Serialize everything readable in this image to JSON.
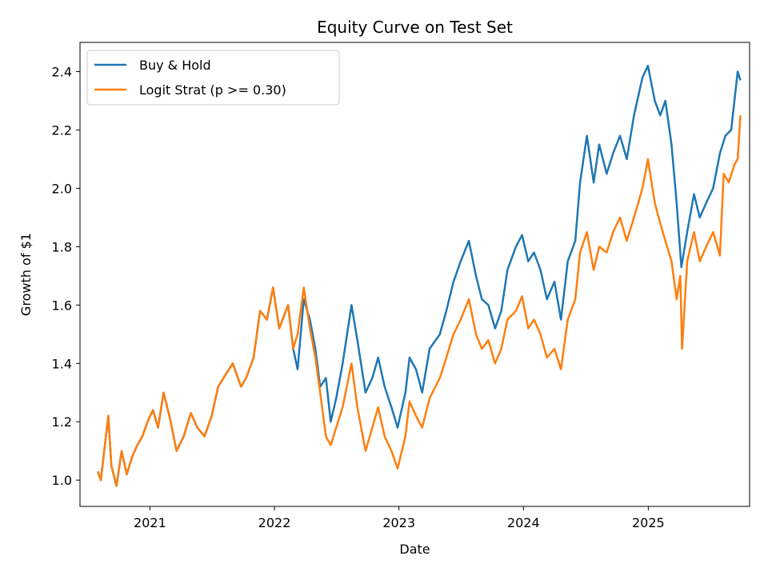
{
  "chart_data": {
    "type": "line",
    "title": "Equity Curve on Test Set",
    "xlabel": "Date",
    "ylabel": "Growth of $1",
    "xlim": [
      "2020-06-10",
      "2025-10-25"
    ],
    "ylim": [
      0.91,
      2.5
    ],
    "x_ticks": [
      {
        "date": "2021-01-01",
        "label": "2021"
      },
      {
        "date": "2022-01-01",
        "label": "2022"
      },
      {
        "date": "2023-01-01",
        "label": "2023"
      },
      {
        "date": "2024-01-01",
        "label": "2024"
      },
      {
        "date": "2025-01-01",
        "label": "2025"
      }
    ],
    "y_ticks": [
      1.0,
      1.2,
      1.4,
      1.6,
      1.8,
      2.0,
      2.2,
      2.4
    ],
    "grid": false,
    "legend_position": "top-left",
    "series": [
      {
        "name": "Buy & Hold",
        "color": "#1f77b4",
        "points": [
          [
            "2020-08-01",
            1.03
          ],
          [
            "2020-08-10",
            1.0
          ],
          [
            "2020-08-25",
            1.15
          ],
          [
            "2020-09-01",
            1.22
          ],
          [
            "2020-09-10",
            1.05
          ],
          [
            "2020-09-25",
            0.98
          ],
          [
            "2020-10-10",
            1.1
          ],
          [
            "2020-10-25",
            1.02
          ],
          [
            "2020-11-10",
            1.08
          ],
          [
            "2020-11-25",
            1.12
          ],
          [
            "2020-12-10",
            1.15
          ],
          [
            "2020-12-25",
            1.2
          ],
          [
            "2021-01-10",
            1.24
          ],
          [
            "2021-01-25",
            1.18
          ],
          [
            "2021-02-10",
            1.3
          ],
          [
            "2021-03-01",
            1.21
          ],
          [
            "2021-03-20",
            1.1
          ],
          [
            "2021-04-10",
            1.15
          ],
          [
            "2021-05-01",
            1.23
          ],
          [
            "2021-05-20",
            1.18
          ],
          [
            "2021-06-10",
            1.15
          ],
          [
            "2021-07-01",
            1.22
          ],
          [
            "2021-07-20",
            1.32
          ],
          [
            "2021-08-10",
            1.36
          ],
          [
            "2021-09-01",
            1.4
          ],
          [
            "2021-09-25",
            1.32
          ],
          [
            "2021-10-10",
            1.35
          ],
          [
            "2021-11-01",
            1.42
          ],
          [
            "2021-11-20",
            1.58
          ],
          [
            "2021-12-10",
            1.55
          ],
          [
            "2021-12-28",
            1.66
          ],
          [
            "2022-01-15",
            1.52
          ],
          [
            "2022-02-10",
            1.6
          ],
          [
            "2022-02-25",
            1.45
          ],
          [
            "2022-03-10",
            1.38
          ],
          [
            "2022-03-28",
            1.62
          ],
          [
            "2022-04-15",
            1.55
          ],
          [
            "2022-05-01",
            1.45
          ],
          [
            "2022-05-15",
            1.32
          ],
          [
            "2022-06-01",
            1.35
          ],
          [
            "2022-06-15",
            1.2
          ],
          [
            "2022-07-01",
            1.28
          ],
          [
            "2022-07-20",
            1.4
          ],
          [
            "2022-08-15",
            1.6
          ],
          [
            "2022-09-01",
            1.48
          ],
          [
            "2022-09-25",
            1.3
          ],
          [
            "2022-10-15",
            1.35
          ],
          [
            "2022-11-01",
            1.42
          ],
          [
            "2022-11-20",
            1.32
          ],
          [
            "2022-12-10",
            1.25
          ],
          [
            "2022-12-28",
            1.18
          ],
          [
            "2023-01-20",
            1.3
          ],
          [
            "2023-02-01",
            1.42
          ],
          [
            "2023-02-20",
            1.38
          ],
          [
            "2023-03-10",
            1.3
          ],
          [
            "2023-04-01",
            1.45
          ],
          [
            "2023-05-01",
            1.5
          ],
          [
            "2023-05-20",
            1.58
          ],
          [
            "2023-06-10",
            1.68
          ],
          [
            "2023-07-01",
            1.75
          ],
          [
            "2023-07-25",
            1.82
          ],
          [
            "2023-08-15",
            1.7
          ],
          [
            "2023-09-01",
            1.62
          ],
          [
            "2023-09-20",
            1.6
          ],
          [
            "2023-10-10",
            1.52
          ],
          [
            "2023-10-28",
            1.58
          ],
          [
            "2023-11-15",
            1.72
          ],
          [
            "2023-12-10",
            1.8
          ],
          [
            "2023-12-28",
            1.84
          ],
          [
            "2024-01-15",
            1.75
          ],
          [
            "2024-02-01",
            1.78
          ],
          [
            "2024-02-20",
            1.72
          ],
          [
            "2024-03-10",
            1.62
          ],
          [
            "2024-04-01",
            1.68
          ],
          [
            "2024-04-20",
            1.55
          ],
          [
            "2024-05-10",
            1.75
          ],
          [
            "2024-06-01",
            1.82
          ],
          [
            "2024-06-15",
            2.02
          ],
          [
            "2024-07-05",
            2.18
          ],
          [
            "2024-07-25",
            2.02
          ],
          [
            "2024-08-10",
            2.15
          ],
          [
            "2024-09-01",
            2.05
          ],
          [
            "2024-09-20",
            2.12
          ],
          [
            "2024-10-10",
            2.18
          ],
          [
            "2024-10-30",
            2.1
          ],
          [
            "2024-11-20",
            2.25
          ],
          [
            "2024-12-15",
            2.38
          ],
          [
            "2024-12-31",
            2.42
          ],
          [
            "2025-01-20",
            2.3
          ],
          [
            "2025-02-05",
            2.25
          ],
          [
            "2025-02-20",
            2.3
          ],
          [
            "2025-03-10",
            2.15
          ],
          [
            "2025-03-25",
            1.95
          ],
          [
            "2025-04-08",
            1.73
          ],
          [
            "2025-04-25",
            1.85
          ],
          [
            "2025-05-15",
            1.98
          ],
          [
            "2025-06-01",
            1.9
          ],
          [
            "2025-06-20",
            1.95
          ],
          [
            "2025-07-10",
            2.0
          ],
          [
            "2025-07-30",
            2.12
          ],
          [
            "2025-08-15",
            2.18
          ],
          [
            "2025-09-01",
            2.2
          ],
          [
            "2025-09-20",
            2.4
          ],
          [
            "2025-09-28",
            2.37
          ]
        ]
      },
      {
        "name": "Logit Strat (p >= 0.30)",
        "color": "#ff7f0e",
        "points": [
          [
            "2020-08-01",
            1.03
          ],
          [
            "2020-08-10",
            1.0
          ],
          [
            "2020-08-25",
            1.15
          ],
          [
            "2020-09-01",
            1.22
          ],
          [
            "2020-09-10",
            1.05
          ],
          [
            "2020-09-25",
            0.98
          ],
          [
            "2020-10-10",
            1.1
          ],
          [
            "2020-10-25",
            1.02
          ],
          [
            "2020-11-10",
            1.08
          ],
          [
            "2020-11-25",
            1.12
          ],
          [
            "2020-12-10",
            1.15
          ],
          [
            "2020-12-25",
            1.2
          ],
          [
            "2021-01-10",
            1.24
          ],
          [
            "2021-01-25",
            1.18
          ],
          [
            "2021-02-10",
            1.3
          ],
          [
            "2021-03-01",
            1.21
          ],
          [
            "2021-03-20",
            1.1
          ],
          [
            "2021-04-10",
            1.15
          ],
          [
            "2021-05-01",
            1.23
          ],
          [
            "2021-05-20",
            1.18
          ],
          [
            "2021-06-10",
            1.15
          ],
          [
            "2021-07-01",
            1.22
          ],
          [
            "2021-07-20",
            1.32
          ],
          [
            "2021-08-10",
            1.36
          ],
          [
            "2021-09-01",
            1.4
          ],
          [
            "2021-09-25",
            1.32
          ],
          [
            "2021-10-10",
            1.35
          ],
          [
            "2021-11-01",
            1.42
          ],
          [
            "2021-11-20",
            1.58
          ],
          [
            "2021-12-10",
            1.55
          ],
          [
            "2021-12-28",
            1.66
          ],
          [
            "2022-01-15",
            1.52
          ],
          [
            "2022-02-10",
            1.6
          ],
          [
            "2022-02-25",
            1.45
          ],
          [
            "2022-03-10",
            1.5
          ],
          [
            "2022-03-28",
            1.66
          ],
          [
            "2022-04-15",
            1.52
          ],
          [
            "2022-05-01",
            1.42
          ],
          [
            "2022-05-15",
            1.3
          ],
          [
            "2022-06-01",
            1.15
          ],
          [
            "2022-06-15",
            1.12
          ],
          [
            "2022-07-01",
            1.18
          ],
          [
            "2022-07-20",
            1.25
          ],
          [
            "2022-08-15",
            1.4
          ],
          [
            "2022-09-01",
            1.25
          ],
          [
            "2022-09-25",
            1.1
          ],
          [
            "2022-10-15",
            1.18
          ],
          [
            "2022-11-01",
            1.25
          ],
          [
            "2022-11-20",
            1.15
          ],
          [
            "2022-12-10",
            1.1
          ],
          [
            "2022-12-28",
            1.04
          ],
          [
            "2023-01-20",
            1.15
          ],
          [
            "2023-02-01",
            1.27
          ],
          [
            "2023-02-20",
            1.22
          ],
          [
            "2023-03-10",
            1.18
          ],
          [
            "2023-04-01",
            1.28
          ],
          [
            "2023-05-01",
            1.35
          ],
          [
            "2023-05-20",
            1.42
          ],
          [
            "2023-06-10",
            1.5
          ],
          [
            "2023-07-01",
            1.55
          ],
          [
            "2023-07-25",
            1.62
          ],
          [
            "2023-08-15",
            1.5
          ],
          [
            "2023-09-01",
            1.45
          ],
          [
            "2023-09-20",
            1.48
          ],
          [
            "2023-10-10",
            1.4
          ],
          [
            "2023-10-28",
            1.45
          ],
          [
            "2023-11-15",
            1.55
          ],
          [
            "2023-12-10",
            1.58
          ],
          [
            "2023-12-28",
            1.63
          ],
          [
            "2024-01-15",
            1.52
          ],
          [
            "2024-02-01",
            1.55
          ],
          [
            "2024-02-20",
            1.5
          ],
          [
            "2024-03-10",
            1.42
          ],
          [
            "2024-04-01",
            1.45
          ],
          [
            "2024-04-20",
            1.38
          ],
          [
            "2024-05-10",
            1.55
          ],
          [
            "2024-06-01",
            1.62
          ],
          [
            "2024-06-15",
            1.78
          ],
          [
            "2024-07-05",
            1.85
          ],
          [
            "2024-07-25",
            1.72
          ],
          [
            "2024-08-10",
            1.8
          ],
          [
            "2024-09-01",
            1.78
          ],
          [
            "2024-09-20",
            1.85
          ],
          [
            "2024-10-10",
            1.9
          ],
          [
            "2024-10-30",
            1.82
          ],
          [
            "2024-11-20",
            1.9
          ],
          [
            "2024-12-15",
            2.0
          ],
          [
            "2024-12-31",
            2.1
          ],
          [
            "2025-01-20",
            1.95
          ],
          [
            "2025-02-05",
            1.88
          ],
          [
            "2025-02-20",
            1.82
          ],
          [
            "2025-03-10",
            1.75
          ],
          [
            "2025-03-25",
            1.62
          ],
          [
            "2025-04-05",
            1.7
          ],
          [
            "2025-04-10",
            1.45
          ],
          [
            "2025-04-25",
            1.75
          ],
          [
            "2025-05-15",
            1.85
          ],
          [
            "2025-06-01",
            1.75
          ],
          [
            "2025-06-20",
            1.8
          ],
          [
            "2025-07-10",
            1.85
          ],
          [
            "2025-07-30",
            1.77
          ],
          [
            "2025-08-10",
            2.05
          ],
          [
            "2025-08-25",
            2.02
          ],
          [
            "2025-09-10",
            2.08
          ],
          [
            "2025-09-20",
            2.1
          ],
          [
            "2025-09-28",
            2.25
          ]
        ]
      }
    ]
  }
}
